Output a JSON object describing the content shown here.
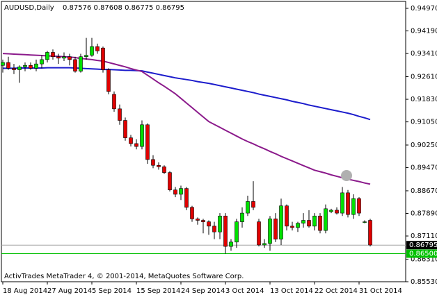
{
  "chart_data": {
    "type": "candlestick",
    "title": "AUDUSD,Daily",
    "subtitle": "0.87576 0.87608 0.86775 0.86795",
    "footer": "ActivTrades MetaTrader 4, © 2001-2014, MetaQuotes Software Corp.",
    "categories": [
      "18 Aug 2014",
      null,
      null,
      null,
      null,
      null,
      null,
      null,
      "27 Aug 2014",
      null,
      null,
      null,
      null,
      null,
      null,
      null,
      "5 Sep 2014",
      null,
      null,
      null,
      null,
      null,
      null,
      null,
      "15 Sep 2014",
      null,
      null,
      null,
      null,
      null,
      null,
      null,
      "24 Sep 2014",
      null,
      null,
      null,
      null,
      null,
      null,
      null,
      "3 Oct 2014",
      null,
      null,
      null,
      null,
      null,
      null,
      null,
      "13 Oct 2014",
      null,
      null,
      null,
      null,
      null,
      null,
      null,
      "22 Oct 2014",
      null,
      null,
      null,
      null,
      null,
      null,
      null,
      "31 Oct 2014",
      null,
      null
    ],
    "open": [
      0.93,
      0.931,
      0.929,
      0.9285,
      0.9295,
      0.93,
      0.929,
      0.9305,
      0.932,
      0.9345,
      0.933,
      0.9325,
      0.933,
      0.932,
      0.928,
      0.933,
      0.9335,
      0.9365,
      0.936,
      0.9285,
      0.92,
      0.915,
      0.911,
      0.905,
      0.903,
      0.902,
      0.9095,
      0.8975,
      0.8955,
      0.895,
      0.893,
      0.887,
      0.8855,
      0.8875,
      0.881,
      0.877,
      0.8765,
      0.876,
      0.8745,
      0.8725,
      0.878,
      0.8675,
      0.869,
      0.876,
      0.879,
      0.883,
      0.876,
      0.868,
      0.8685,
      0.877,
      0.87,
      0.8815,
      0.8745,
      0.874,
      0.8755,
      0.8765,
      0.8745,
      0.878,
      0.873,
      0.8795,
      0.88,
      0.879,
      0.886,
      0.8785,
      0.884,
      0.876,
      0.8765
    ],
    "high": [
      0.932,
      0.933,
      0.9305,
      0.93,
      0.931,
      0.931,
      0.932,
      0.9335,
      0.935,
      0.9355,
      0.934,
      0.9345,
      0.934,
      0.933,
      0.934,
      0.9395,
      0.9395,
      0.9375,
      0.9365,
      0.929,
      0.921,
      0.9165,
      0.912,
      0.906,
      0.9045,
      0.911,
      0.91,
      0.899,
      0.8965,
      0.8955,
      0.8935,
      0.888,
      0.8885,
      0.888,
      0.8815,
      0.8775,
      0.877,
      0.8765,
      0.876,
      0.879,
      0.879,
      0.87,
      0.877,
      0.881,
      0.885,
      0.89,
      0.877,
      0.87,
      0.878,
      0.879,
      0.884,
      0.882,
      0.876,
      0.876,
      0.879,
      0.88,
      0.879,
      0.879,
      0.882,
      0.8805,
      0.881,
      0.888,
      0.887,
      0.8855,
      0.8845,
      0.8765,
      0.877
    ],
    "low": [
      0.9275,
      0.9285,
      0.927,
      0.924,
      0.928,
      0.9285,
      0.928,
      0.929,
      0.931,
      0.932,
      0.9305,
      0.9315,
      0.93,
      0.9275,
      0.9275,
      0.932,
      0.933,
      0.934,
      0.9275,
      0.92,
      0.914,
      0.9095,
      0.904,
      0.902,
      0.901,
      0.901,
      0.896,
      0.8945,
      0.894,
      0.8925,
      0.8865,
      0.8845,
      0.8835,
      0.88,
      0.876,
      0.875,
      0.872,
      0.8715,
      0.87,
      0.87,
      0.865,
      0.866,
      0.867,
      0.874,
      0.878,
      0.88,
      0.8675,
      0.867,
      0.866,
      0.869,
      0.868,
      0.873,
      0.873,
      0.8725,
      0.874,
      0.874,
      0.873,
      0.872,
      0.872,
      0.879,
      0.8785,
      0.878,
      0.8775,
      0.877,
      0.878,
      0.8755,
      0.8675
    ],
    "close": [
      0.931,
      0.929,
      0.9285,
      0.9295,
      0.93,
      0.929,
      0.9305,
      0.932,
      0.9345,
      0.933,
      0.9325,
      0.933,
      0.932,
      0.928,
      0.933,
      0.9335,
      0.9365,
      0.935,
      0.9285,
      0.921,
      0.915,
      0.911,
      0.905,
      0.903,
      0.902,
      0.9095,
      0.8975,
      0.8955,
      0.895,
      0.893,
      0.887,
      0.8855,
      0.8875,
      0.881,
      0.877,
      0.8765,
      0.876,
      0.8745,
      0.8725,
      0.878,
      0.8675,
      0.869,
      0.876,
      0.879,
      0.883,
      0.881,
      0.868,
      0.8685,
      0.877,
      0.87,
      0.8815,
      0.8745,
      0.874,
      0.8755,
      0.8765,
      0.8745,
      0.878,
      0.873,
      0.8805,
      0.88,
      0.879,
      0.886,
      0.8785,
      0.884,
      0.879,
      0.876,
      0.868
    ],
    "up_color": "#00e000",
    "down_color": "#e00000",
    "series": [
      {
        "color": "#1c1ccc",
        "values": [
          0.929,
          0.929,
          0.929,
          0.9291,
          0.9291,
          0.9291,
          0.9291,
          0.9291,
          0.9292,
          0.9292,
          0.9292,
          0.9292,
          0.9292,
          0.9291,
          0.929,
          0.9289,
          0.9288,
          0.9287,
          0.9286,
          0.9286,
          0.9285,
          0.9284,
          0.9283,
          0.9283,
          0.9282,
          0.9281,
          0.9277,
          0.9273,
          0.9269,
          0.9265,
          0.9261,
          0.9257,
          0.9254,
          0.9251,
          0.9248,
          0.9244,
          0.9241,
          0.9238,
          0.9234,
          0.923,
          0.9226,
          0.9222,
          0.9218,
          0.9214,
          0.921,
          0.9206,
          0.9201,
          0.9197,
          0.9193,
          0.9189,
          0.9185,
          0.9181,
          0.9176,
          0.9172,
          0.9168,
          0.9163,
          0.9159,
          0.9155,
          0.9151,
          0.9147,
          0.9143,
          0.9139,
          0.9135,
          0.913,
          0.9124,
          0.9119,
          0.9113
        ]
      },
      {
        "color": "#8b1a8b",
        "values": [
          0.9341,
          0.934,
          0.9339,
          0.9338,
          0.9337,
          0.9336,
          0.9335,
          0.9334,
          0.9333,
          0.9332,
          0.9331,
          0.933,
          0.9329,
          0.9327,
          0.9324,
          0.9322,
          0.932,
          0.9317,
          0.9315,
          0.931,
          0.9305,
          0.93,
          0.9295,
          0.9289,
          0.9284,
          0.9279,
          0.9266,
          0.9253,
          0.924,
          0.9228,
          0.9215,
          0.9202,
          0.9186,
          0.917,
          0.9154,
          0.9138,
          0.9122,
          0.9106,
          0.9096,
          0.9086,
          0.9076,
          0.9066,
          0.9056,
          0.9046,
          0.9037,
          0.9029,
          0.902,
          0.9012,
          0.9003,
          0.8995,
          0.8986,
          0.8978,
          0.897,
          0.8962,
          0.8954,
          0.8946,
          0.8938,
          0.8933,
          0.8928,
          0.8922,
          0.8917,
          0.8912,
          0.8907,
          0.8903,
          0.8899,
          0.8894,
          0.889
        ]
      }
    ],
    "ylim": [
      0.8553,
      0.9521
    ],
    "yticks": [
      {
        "value": 0.9497,
        "label": "0.94970"
      },
      {
        "value": 0.9419,
        "label": "0.94190"
      },
      {
        "value": 0.9341,
        "label": "0.93410"
      },
      {
        "value": 0.9261,
        "label": "0.92610"
      },
      {
        "value": 0.9183,
        "label": "0.91830"
      },
      {
        "value": 0.9105,
        "label": "0.91050"
      },
      {
        "value": 0.9025,
        "label": "0.90250"
      },
      {
        "value": 0.8947,
        "label": "0.89470"
      },
      {
        "value": 0.8867,
        "label": "0.88670"
      },
      {
        "value": 0.8789,
        "label": "0.87890"
      },
      {
        "value": 0.8711,
        "label": "0.87110"
      },
      {
        "value": 0.8631,
        "label": "0.86310"
      },
      {
        "value": 0.8553,
        "label": "0.85530"
      }
    ],
    "price_lines": [
      {
        "value": 0.86795,
        "label": "0.86795",
        "color": "#a0a0a0",
        "label_bg": "#000000",
        "label_color": "#ffffff"
      },
      {
        "value": 0.865,
        "label": "0.86500",
        "color": "#00c000",
        "label_bg": "#00c000",
        "label_color": "#ffffff"
      }
    ]
  }
}
